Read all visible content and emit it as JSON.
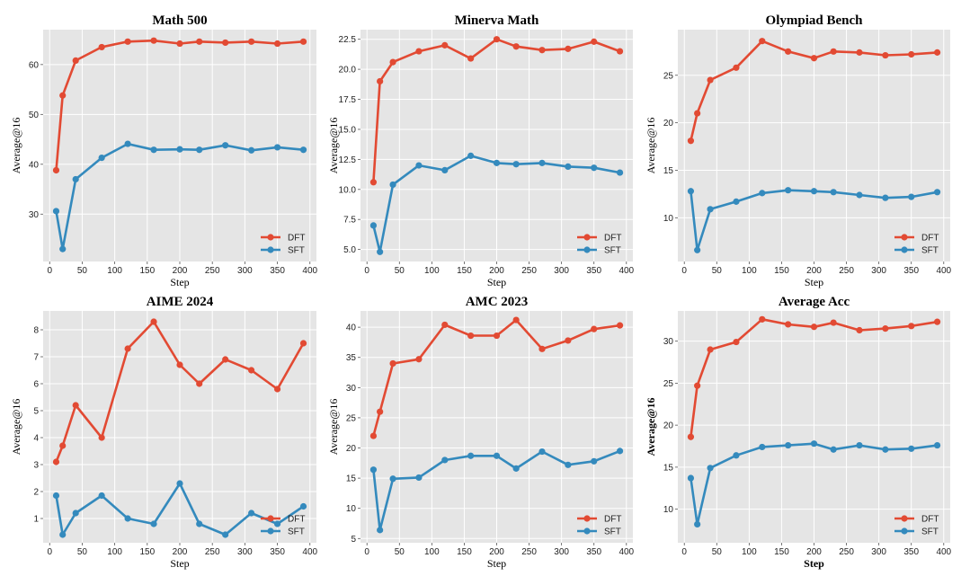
{
  "colors": {
    "DFT": "#e24a33",
    "SFT": "#348abd",
    "panel_bg": "#e5e5e5",
    "grid": "#ffffff"
  },
  "chart_data": [
    {
      "type": "line",
      "title": "Math 500",
      "xlabel": "Step",
      "ylabel": "Average@16",
      "xlim": [
        -10,
        410
      ],
      "ylim": [
        20.5,
        67
      ],
      "xticks": [
        0,
        50,
        100,
        150,
        200,
        250,
        300,
        350,
        400
      ],
      "yticks": [
        30,
        40,
        50,
        60
      ],
      "grid": true,
      "legend": "bottom-right",
      "series": [
        {
          "name": "DFT",
          "x": [
            10,
            20,
            40,
            80,
            120,
            160,
            200,
            230,
            270,
            310,
            350,
            390
          ],
          "y": [
            38.8,
            53.8,
            60.8,
            63.5,
            64.6,
            64.8,
            64.2,
            64.6,
            64.4,
            64.6,
            64.2,
            64.6
          ]
        },
        {
          "name": "SFT",
          "x": [
            10,
            20,
            40,
            80,
            120,
            160,
            200,
            230,
            270,
            310,
            350,
            390
          ],
          "y": [
            30.6,
            23.0,
            37.0,
            41.3,
            44.1,
            42.9,
            43.0,
            42.9,
            43.8,
            42.8,
            43.4,
            42.9
          ]
        }
      ]
    },
    {
      "type": "line",
      "title": "Minerva Math",
      "xlabel": "Step",
      "ylabel": "Average@16",
      "xlim": [
        -10,
        410
      ],
      "ylim": [
        4.0,
        23.3
      ],
      "xticks": [
        0,
        50,
        100,
        150,
        200,
        250,
        300,
        350,
        400
      ],
      "yticks": [
        5.0,
        7.5,
        10.0,
        12.5,
        15.0,
        17.5,
        20.0,
        22.5
      ],
      "ytick_labels": [
        "5.0",
        "7.5",
        "10.0",
        "12.5",
        "15.0",
        "17.5",
        "20.0",
        "22.5"
      ],
      "grid": true,
      "legend": "bottom-right",
      "series": [
        {
          "name": "DFT",
          "x": [
            10,
            20,
            40,
            80,
            120,
            160,
            200,
            230,
            270,
            310,
            350,
            390
          ],
          "y": [
            10.6,
            19.0,
            20.6,
            21.5,
            22.0,
            20.9,
            22.5,
            21.9,
            21.6,
            21.7,
            22.3,
            21.5
          ]
        },
        {
          "name": "SFT",
          "x": [
            10,
            20,
            40,
            80,
            120,
            160,
            200,
            230,
            270,
            310,
            350,
            390
          ],
          "y": [
            7.0,
            4.8,
            10.4,
            12.0,
            11.6,
            12.8,
            12.2,
            12.1,
            12.2,
            11.9,
            11.8,
            11.4
          ]
        }
      ]
    },
    {
      "type": "line",
      "title": "Olympiad Bench",
      "xlabel": "Step",
      "ylabel": "Average@16",
      "xlim": [
        -10,
        410
      ],
      "ylim": [
        5.4,
        29.8
      ],
      "xticks": [
        0,
        50,
        100,
        150,
        200,
        250,
        300,
        350,
        400
      ],
      "yticks": [
        10,
        15,
        20,
        25
      ],
      "grid": true,
      "legend": "bottom-right",
      "series": [
        {
          "name": "DFT",
          "x": [
            10,
            20,
            40,
            80,
            120,
            160,
            200,
            230,
            270,
            310,
            350,
            390
          ],
          "y": [
            18.1,
            21.0,
            24.5,
            25.8,
            28.6,
            27.5,
            26.8,
            27.5,
            27.4,
            27.1,
            27.2,
            27.4
          ]
        },
        {
          "name": "SFT",
          "x": [
            10,
            20,
            40,
            80,
            120,
            160,
            200,
            230,
            270,
            310,
            350,
            390
          ],
          "y": [
            12.8,
            6.6,
            10.9,
            11.7,
            12.6,
            12.9,
            12.8,
            12.7,
            12.4,
            12.1,
            12.2,
            12.7
          ]
        }
      ]
    },
    {
      "type": "line",
      "title": "AIME 2024",
      "xlabel": "Step",
      "ylabel": "Average@16",
      "xlim": [
        -10,
        410
      ],
      "ylim": [
        0.1,
        8.7
      ],
      "xticks": [
        0,
        50,
        100,
        150,
        200,
        250,
        300,
        350,
        400
      ],
      "yticks": [
        1,
        2,
        3,
        4,
        5,
        6,
        7,
        8
      ],
      "grid": true,
      "legend": "bottom-right",
      "series": [
        {
          "name": "DFT",
          "x": [
            10,
            20,
            40,
            80,
            120,
            160,
            200,
            230,
            270,
            310,
            350,
            390
          ],
          "y": [
            3.1,
            3.7,
            5.2,
            4.0,
            7.3,
            8.3,
            6.7,
            6.0,
            6.9,
            6.5,
            5.8,
            7.5
          ]
        },
        {
          "name": "SFT",
          "x": [
            10,
            20,
            40,
            80,
            120,
            160,
            200,
            230,
            270,
            310,
            350,
            390
          ],
          "y": [
            1.85,
            0.4,
            1.2,
            1.85,
            1.0,
            0.8,
            2.3,
            0.8,
            0.4,
            1.2,
            0.8,
            1.45
          ]
        }
      ]
    },
    {
      "type": "line",
      "title": "AMC 2023",
      "xlabel": "Step",
      "ylabel": "Average@16",
      "xlim": [
        -10,
        410
      ],
      "ylim": [
        4.3,
        42.7
      ],
      "xticks": [
        0,
        50,
        100,
        150,
        200,
        250,
        300,
        350,
        400
      ],
      "yticks": [
        5,
        10,
        15,
        20,
        25,
        30,
        35,
        40
      ],
      "grid": true,
      "legend": "bottom-right",
      "series": [
        {
          "name": "DFT",
          "x": [
            10,
            20,
            40,
            80,
            120,
            160,
            200,
            230,
            270,
            310,
            350,
            390
          ],
          "y": [
            22.0,
            26.0,
            34.0,
            34.7,
            40.4,
            38.6,
            38.6,
            41.2,
            36.4,
            37.8,
            39.7,
            40.3
          ]
        },
        {
          "name": "SFT",
          "x": [
            10,
            20,
            40,
            80,
            120,
            160,
            200,
            230,
            270,
            310,
            350,
            390
          ],
          "y": [
            16.4,
            6.4,
            14.9,
            15.1,
            18.0,
            18.7,
            18.7,
            16.6,
            19.4,
            17.2,
            17.8,
            19.5
          ]
        }
      ]
    },
    {
      "type": "line",
      "title": "Average Acc",
      "xlabel": "Step",
      "ylabel": "Average@16",
      "xlim": [
        -10,
        410
      ],
      "ylim": [
        6.0,
        33.6
      ],
      "xticks": [
        0,
        50,
        100,
        150,
        200,
        250,
        300,
        350,
        400
      ],
      "yticks": [
        10,
        15,
        20,
        25,
        30
      ],
      "grid": true,
      "legend": "bottom-right",
      "series": [
        {
          "name": "DFT",
          "x": [
            10,
            20,
            40,
            80,
            120,
            160,
            200,
            230,
            270,
            310,
            350,
            390
          ],
          "y": [
            18.6,
            24.7,
            29.0,
            29.9,
            32.6,
            32.0,
            31.7,
            32.2,
            31.3,
            31.5,
            31.8,
            32.3
          ]
        },
        {
          "name": "SFT",
          "x": [
            10,
            20,
            40,
            80,
            120,
            160,
            200,
            230,
            270,
            310,
            350,
            390
          ],
          "y": [
            13.7,
            8.2,
            14.9,
            16.4,
            17.4,
            17.6,
            17.8,
            17.1,
            17.6,
            17.1,
            17.2,
            17.6
          ]
        }
      ]
    }
  ]
}
